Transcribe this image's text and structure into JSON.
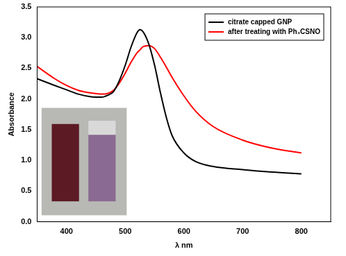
{
  "chart_data": {
    "type": "line",
    "x_label": "λ nm",
    "y_label": "Absorbance",
    "x": [
      350,
      380,
      400,
      420,
      440,
      460,
      470,
      480,
      490,
      500,
      510,
      520,
      525,
      530,
      540,
      550,
      560,
      570,
      580,
      600,
      620,
      650,
      700,
      750,
      800
    ],
    "series": [
      {
        "name": "citrate capped GNP",
        "color": "#000000",
        "marker": "none",
        "line_style": "solid",
        "values": [
          2.33,
          2.22,
          2.15,
          2.08,
          2.04,
          2.03,
          2.06,
          2.12,
          2.3,
          2.55,
          2.85,
          3.08,
          3.13,
          3.1,
          2.9,
          2.55,
          2.1,
          1.7,
          1.4,
          1.12,
          0.98,
          0.9,
          0.85,
          0.81,
          0.78
        ]
      },
      {
        "name": "after treating with Ph₃CSNO",
        "color": "#ff0000",
        "marker": "none",
        "line_style": "solid",
        "values": [
          2.53,
          2.33,
          2.22,
          2.14,
          2.1,
          2.08,
          2.09,
          2.14,
          2.26,
          2.42,
          2.6,
          2.75,
          2.8,
          2.85,
          2.87,
          2.82,
          2.68,
          2.52,
          2.35,
          2.05,
          1.8,
          1.55,
          1.33,
          1.2,
          1.12
        ]
      }
    ],
    "xlim": [
      350,
      850
    ],
    "xticks": [
      400,
      500,
      600,
      700,
      800
    ],
    "ylim": [
      0,
      3.5
    ],
    "yticks": [
      {
        "value": 0,
        "label": "0.0"
      },
      0.5,
      {
        "value": 1,
        "label": "1.0"
      },
      1.5,
      {
        "value": 2,
        "label": "2.0"
      },
      2.5,
      {
        "value": 3,
        "label": "3.0"
      },
      3.5
    ],
    "grid": false,
    "legend": "upper right"
  }
}
